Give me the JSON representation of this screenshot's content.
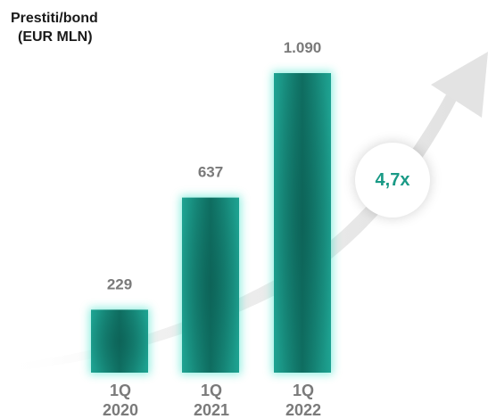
{
  "title_line1": "Prestiti/bond",
  "title_line2": "(EUR MLN)",
  "badge": "4,7x",
  "colors": {
    "bar": "#1ea392",
    "bar_dark": "#0f6f62",
    "bar_glow": "#33e0c6",
    "badge_text": "#1a9a86",
    "label_text": "#7a7a7a",
    "arrow": "#e6e6e6"
  },
  "chart_data": {
    "type": "bar",
    "title": "Prestiti/bond (EUR MLN)",
    "categories": [
      [
        "1Q",
        "2020"
      ],
      [
        "1Q",
        "2021"
      ],
      [
        "1Q",
        "2022"
      ]
    ],
    "values": [
      229,
      637,
      1090
    ],
    "data_labels": [
      "229",
      "637",
      "1.090"
    ],
    "ylim": [
      0,
      1090
    ],
    "grid": false,
    "legend": "none"
  }
}
